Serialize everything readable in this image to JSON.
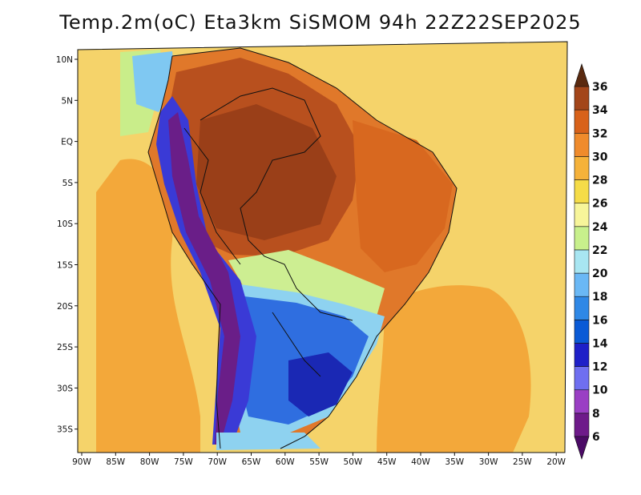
{
  "title": "Temp.2m(oC) Eta3km SiSMOM 94h 22Z22SEP2025",
  "lon_labels": [
    "90W",
    "85W",
    "80W",
    "75W",
    "70W",
    "65W",
    "60W",
    "55W",
    "50W",
    "45W",
    "40W",
    "35W",
    "30W",
    "25W",
    "20W"
  ],
  "lat_labels": [
    "10N",
    "5N",
    "EQ",
    "5S",
    "10S",
    "15S",
    "20S",
    "25S",
    "30S",
    "35S"
  ],
  "colorbar": {
    "levels": [
      "6",
      "8",
      "10",
      "12",
      "14",
      "16",
      "18",
      "20",
      "22",
      "24",
      "26",
      "28",
      "30",
      "32",
      "34",
      "36"
    ],
    "low_arrow_color": "#4b0a66",
    "high_arrow_color": "#5a2a10",
    "bands": [
      "#6e1a8a",
      "#9a3fc4",
      "#6f6ff0",
      "#1e20c8",
      "#0a5ad6",
      "#2f88e6",
      "#6ab8f5",
      "#a8e6f2",
      "#c8f08c",
      "#f7f59a",
      "#f5dc48",
      "#f5b23a",
      "#ef8b2c",
      "#d8621a",
      "#a3461a"
    ]
  },
  "regions": {
    "ocean_far": "#f5d36a",
    "ocean_mid": "#f3a83a",
    "pacific_cool": "#c9ed8a",
    "pacific_cyan": "#7fc8f2",
    "amazon": "#b8501e",
    "amazon_hot": "#9a3f18",
    "nordeste": "#d8681f",
    "center_west": "#e0782a",
    "andes_deep": "#6a1e88",
    "andes_blue": "#3a3ad6",
    "south_blue": "#2f6ee0",
    "south_dark": "#1a28b4",
    "southern_cyan": "#8ed2f0",
    "transition_green": "#cdee92",
    "border": "#111111",
    "frame": "#111111"
  }
}
